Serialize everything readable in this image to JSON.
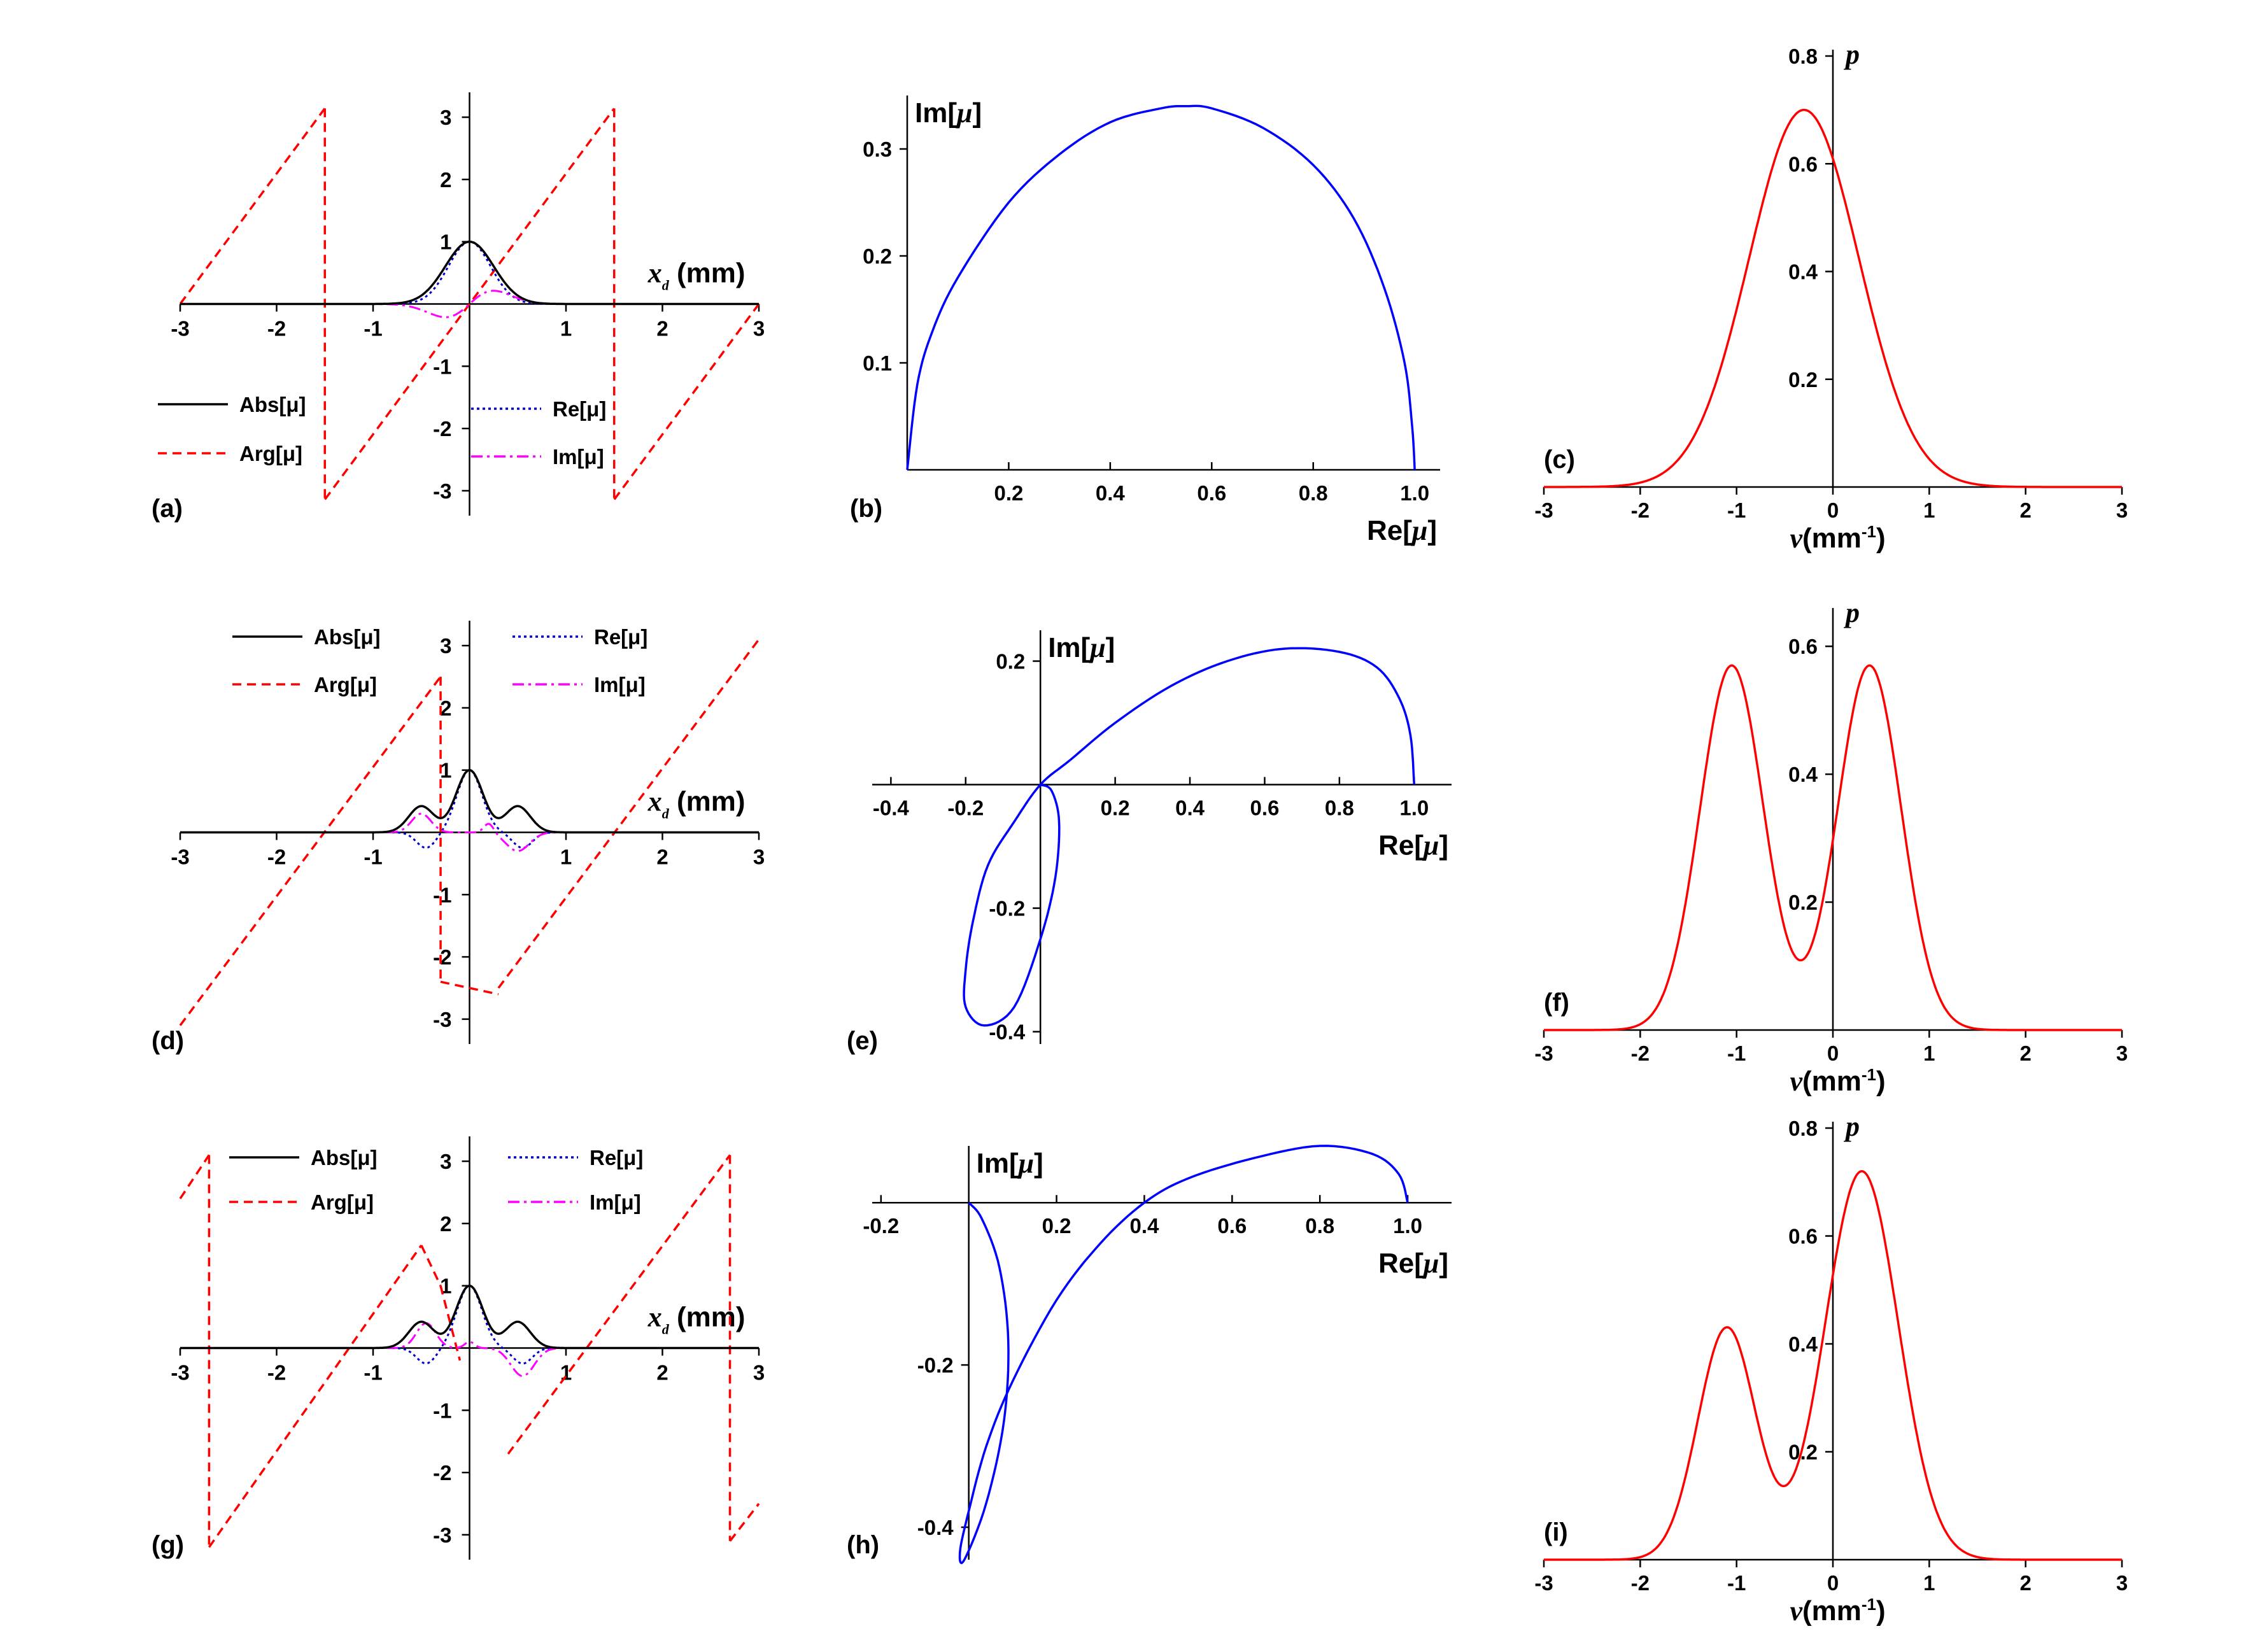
{
  "colors": {
    "abs": "#000000",
    "arg": "#ff0000",
    "re": "#0000cc",
    "im": "#ff00ff",
    "curve_blue": "#0000ff",
    "curve_red": "#ff0000",
    "axis": "#000000"
  },
  "legend_labels": {
    "abs": "Abs[μ]",
    "arg": "Arg[μ]",
    "re": "Re[μ]",
    "im": "Im[μ]"
  },
  "axis_labels": {
    "xd_var": "x",
    "xd_sub": "d",
    "xd_unit": "(mm)",
    "re_mu": "Re[",
    "im_mu": "Im[",
    "mu": "μ",
    "close": "]",
    "p": "p",
    "nu": "ν",
    "nu_unit": "(mm",
    "nu_exp": "-1",
    "nu_close": ")"
  },
  "chart_data": [
    {
      "panel": "(a)",
      "type": "line",
      "profile": "single",
      "xlim": [
        -3,
        3
      ],
      "ylim": [
        -3.4,
        3.4
      ],
      "xticks": [
        "-3",
        "-2",
        "-1",
        "1",
        "2",
        "3"
      ],
      "yticks": [
        "-3",
        "-2",
        "-1",
        "1",
        "2",
        "3"
      ],
      "series": [
        {
          "name": "Abs[μ]",
          "key": "abs",
          "style": "solid"
        },
        {
          "name": "Arg[μ]",
          "key": "arg",
          "style": "dashed"
        },
        {
          "name": "Re[μ]",
          "key": "re",
          "style": "dotted"
        },
        {
          "name": "Im[μ]",
          "key": "im",
          "style": "dashdot"
        }
      ],
      "arg_slope": 2.094,
      "arg_jumps_x": [
        -1.5,
        1.5
      ],
      "re_peak": 1.0,
      "im_extreme": [
        -0.35,
        0.35
      ]
    },
    {
      "panel": "(b)",
      "type": "line",
      "curve": "parametric",
      "xlim": [
        0,
        1.05
      ],
      "ylim": [
        0,
        0.35
      ],
      "xticks": [
        "0.2",
        "0.4",
        "0.6",
        "0.8",
        "1.0"
      ],
      "yticks": [
        "0.1",
        "0.2",
        "0.3"
      ],
      "points": [
        [
          0,
          0
        ],
        [
          0.02,
          0.08
        ],
        [
          0.05,
          0.13
        ],
        [
          0.1,
          0.18
        ],
        [
          0.2,
          0.25
        ],
        [
          0.3,
          0.295
        ],
        [
          0.4,
          0.325
        ],
        [
          0.5,
          0.338
        ],
        [
          0.55,
          0.34
        ],
        [
          0.6,
          0.338
        ],
        [
          0.7,
          0.32
        ],
        [
          0.8,
          0.285
        ],
        [
          0.88,
          0.235
        ],
        [
          0.94,
          0.17
        ],
        [
          0.98,
          0.1
        ],
        [
          0.995,
          0.04
        ],
        [
          1.0,
          0
        ]
      ]
    },
    {
      "panel": "(c)",
      "type": "line",
      "xlim": [
        -3,
        3
      ],
      "ylim": [
        0,
        0.8
      ],
      "xticks": [
        "-3",
        "-2",
        "-1",
        "0",
        "1",
        "2",
        "3"
      ],
      "yticks": [
        "0.2",
        "0.4",
        "0.6",
        "0.8"
      ],
      "gaussians": [
        {
          "a": 0.7,
          "mu": -0.3,
          "sigma": 0.57
        }
      ]
    },
    {
      "panel": "(d)",
      "type": "line",
      "profile": "triple",
      "xlim": [
        -3,
        3
      ],
      "ylim": [
        -3.4,
        3.4
      ],
      "xticks": [
        "-3",
        "-2",
        "-1",
        "1",
        "2",
        "3"
      ],
      "yticks": [
        "-3",
        "-2",
        "-1",
        "1",
        "2",
        "3"
      ],
      "series": [
        {
          "name": "Abs[μ]",
          "key": "abs",
          "style": "solid"
        },
        {
          "name": "Arg[μ]",
          "key": "arg",
          "style": "dashed"
        },
        {
          "name": "Re[μ]",
          "key": "re",
          "style": "dotted"
        },
        {
          "name": "Im[μ]",
          "key": "im",
          "style": "dashdot"
        }
      ],
      "arg_segments": [
        [
          [
            -3,
            -3.1
          ],
          [
            -0.3,
            2.5
          ]
        ],
        [
          [
            -0.3,
            -2.4
          ],
          [
            0.3,
            -2.6
          ]
        ],
        [
          [
            0.3,
            -2.5
          ],
          [
            3,
            3.1
          ]
        ]
      ],
      "side_lobe": 0.42
    },
    {
      "panel": "(e)",
      "type": "line",
      "curve": "parametric",
      "xlim": [
        -0.45,
        1.1
      ],
      "ylim": [
        -0.42,
        0.25
      ],
      "xticks": [
        "-0.4",
        "-0.2",
        "0.2",
        "0.4",
        "0.6",
        "0.8",
        "1.0"
      ],
      "yticks": [
        "-0.4",
        "-0.2",
        "0.2"
      ],
      "points": [
        [
          1.0,
          0
        ],
        [
          0.99,
          0.08
        ],
        [
          0.96,
          0.14
        ],
        [
          0.9,
          0.19
        ],
        [
          0.8,
          0.215
        ],
        [
          0.65,
          0.22
        ],
        [
          0.5,
          0.2
        ],
        [
          0.35,
          0.16
        ],
        [
          0.2,
          0.1
        ],
        [
          0.08,
          0.04
        ],
        [
          0,
          0
        ],
        [
          -0.07,
          -0.06
        ],
        [
          -0.14,
          -0.13
        ],
        [
          -0.18,
          -0.22
        ],
        [
          -0.2,
          -0.3
        ],
        [
          -0.2,
          -0.36
        ],
        [
          -0.15,
          -0.39
        ],
        [
          -0.07,
          -0.36
        ],
        [
          0,
          -0.25
        ],
        [
          0.04,
          -0.15
        ],
        [
          0.05,
          -0.06
        ],
        [
          0.03,
          -0.01
        ],
        [
          0,
          0
        ]
      ]
    },
    {
      "panel": "(f)",
      "type": "line",
      "xlim": [
        -3,
        3
      ],
      "ylim": [
        0,
        0.65
      ],
      "xticks": [
        "-3",
        "-2",
        "-1",
        "0",
        "1",
        "2",
        "3"
      ],
      "yticks": [
        "0.2",
        "0.4",
        "0.6"
      ],
      "gaussians": [
        {
          "a": 0.57,
          "mu": -1.05,
          "sigma": 0.33
        },
        {
          "a": 0.57,
          "mu": 0.38,
          "sigma": 0.33
        }
      ]
    },
    {
      "panel": "(g)",
      "type": "line",
      "profile": "triple",
      "xlim": [
        -3,
        3
      ],
      "ylim": [
        -3.4,
        3.4
      ],
      "xticks": [
        "-3",
        "-2",
        "-1",
        "1",
        "2",
        "3"
      ],
      "yticks": [
        "-3",
        "-2",
        "-1",
        "1",
        "2",
        "3"
      ],
      "series": [
        {
          "name": "Abs[μ]",
          "key": "abs",
          "style": "solid"
        },
        {
          "name": "Arg[μ]",
          "key": "arg",
          "style": "dashed"
        },
        {
          "name": "Re[μ]",
          "key": "re",
          "style": "dotted"
        },
        {
          "name": "Im[μ]",
          "key": "im",
          "style": "dashdot"
        }
      ],
      "arg_segments": [
        [
          [
            -3,
            2.4
          ],
          [
            -2.7,
            3.1
          ]
        ],
        [
          [
            -2.7,
            -3.2
          ],
          [
            -0.5,
            1.65
          ]
        ],
        [
          [
            -0.5,
            1.65
          ],
          [
            -0.3,
            1.0
          ]
        ],
        [
          [
            -0.3,
            1.0
          ],
          [
            -0.1,
            -0.2
          ]
        ],
        [
          [
            0.4,
            -1.7
          ],
          [
            2.7,
            3.1
          ]
        ],
        [
          [
            2.7,
            -3.1
          ],
          [
            3,
            -2.5
          ]
        ]
      ],
      "side_lobe": 0.42
    },
    {
      "panel": "(h)",
      "type": "line",
      "curve": "parametric",
      "xlim": [
        -0.22,
        1.1
      ],
      "ylim": [
        -0.44,
        0.07
      ],
      "xticks": [
        "-0.2",
        "0.2",
        "0.4",
        "0.6",
        "0.8",
        "1.0"
      ],
      "yticks": [
        "-0.4",
        "-0.2"
      ],
      "points": [
        [
          1.0,
          0
        ],
        [
          0.98,
          0.035
        ],
        [
          0.92,
          0.06
        ],
        [
          0.8,
          0.07
        ],
        [
          0.65,
          0.055
        ],
        [
          0.5,
          0.03
        ],
        [
          0.4,
          0
        ],
        [
          0.3,
          -0.05
        ],
        [
          0.2,
          -0.12
        ],
        [
          0.1,
          -0.22
        ],
        [
          0.04,
          -0.3
        ],
        [
          0,
          -0.38
        ],
        [
          -0.02,
          -0.43
        ],
        [
          -0.01,
          -0.44
        ],
        [
          0.04,
          -0.37
        ],
        [
          0.08,
          -0.27
        ],
        [
          0.09,
          -0.17
        ],
        [
          0.07,
          -0.08
        ],
        [
          0.03,
          -0.02
        ],
        [
          0,
          0
        ]
      ]
    },
    {
      "panel": "(i)",
      "type": "line",
      "xlim": [
        -3,
        3
      ],
      "ylim": [
        0,
        0.8
      ],
      "xticks": [
        "-3",
        "-2",
        "-1",
        "0",
        "1",
        "2",
        "3"
      ],
      "yticks": [
        "0.2",
        "0.4",
        "0.6",
        "0.8"
      ],
      "gaussians": [
        {
          "a": 0.43,
          "mu": -1.1,
          "sigma": 0.3
        },
        {
          "a": 0.72,
          "mu": 0.3,
          "sigma": 0.38
        }
      ]
    }
  ]
}
